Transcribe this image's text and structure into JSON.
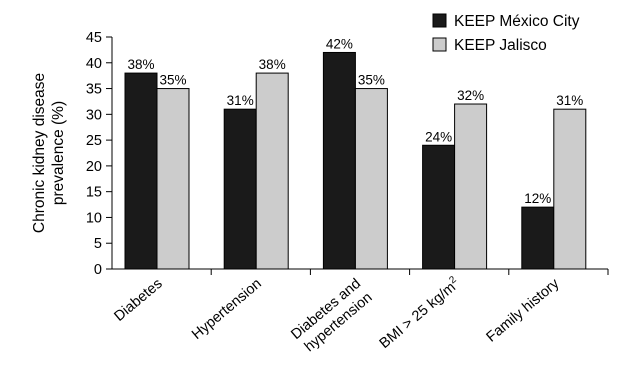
{
  "chart_data": {
    "type": "bar",
    "title": "",
    "xlabel": "",
    "ylabel": "Chronic kidney disease prevalence (%)",
    "ylabel_lines": [
      "Chronic kidney disease",
      "prevalence (%)"
    ],
    "ylim": [
      0,
      45
    ],
    "yticks": [
      0,
      5,
      10,
      15,
      20,
      25,
      30,
      35,
      40,
      45
    ],
    "grid": false,
    "legend_position": "top-right",
    "categories": [
      "Diabetes",
      "Hypertension",
      "Diabetes and hypertension",
      "BMI > 25 kg/m2",
      "Family history"
    ],
    "category_lines": [
      [
        "Diabetes"
      ],
      [
        "Hypertension"
      ],
      [
        "Diabetes and",
        "hypertension"
      ],
      [
        "BMI > 25 kg/m²"
      ],
      [
        "Family history"
      ]
    ],
    "series": [
      {
        "name": "KEEP México City",
        "color": "#1a1a1a",
        "values": [
          38,
          31,
          42,
          24,
          12
        ],
        "labels": [
          "38%",
          "31%",
          "42%",
          "24%",
          "12%"
        ]
      },
      {
        "name": "KEEP Jalisco",
        "color": "#cccccc",
        "values": [
          35,
          38,
          35,
          32,
          31
        ],
        "labels": [
          "35%",
          "38%",
          "35%",
          "32%",
          "31%"
        ]
      }
    ]
  }
}
